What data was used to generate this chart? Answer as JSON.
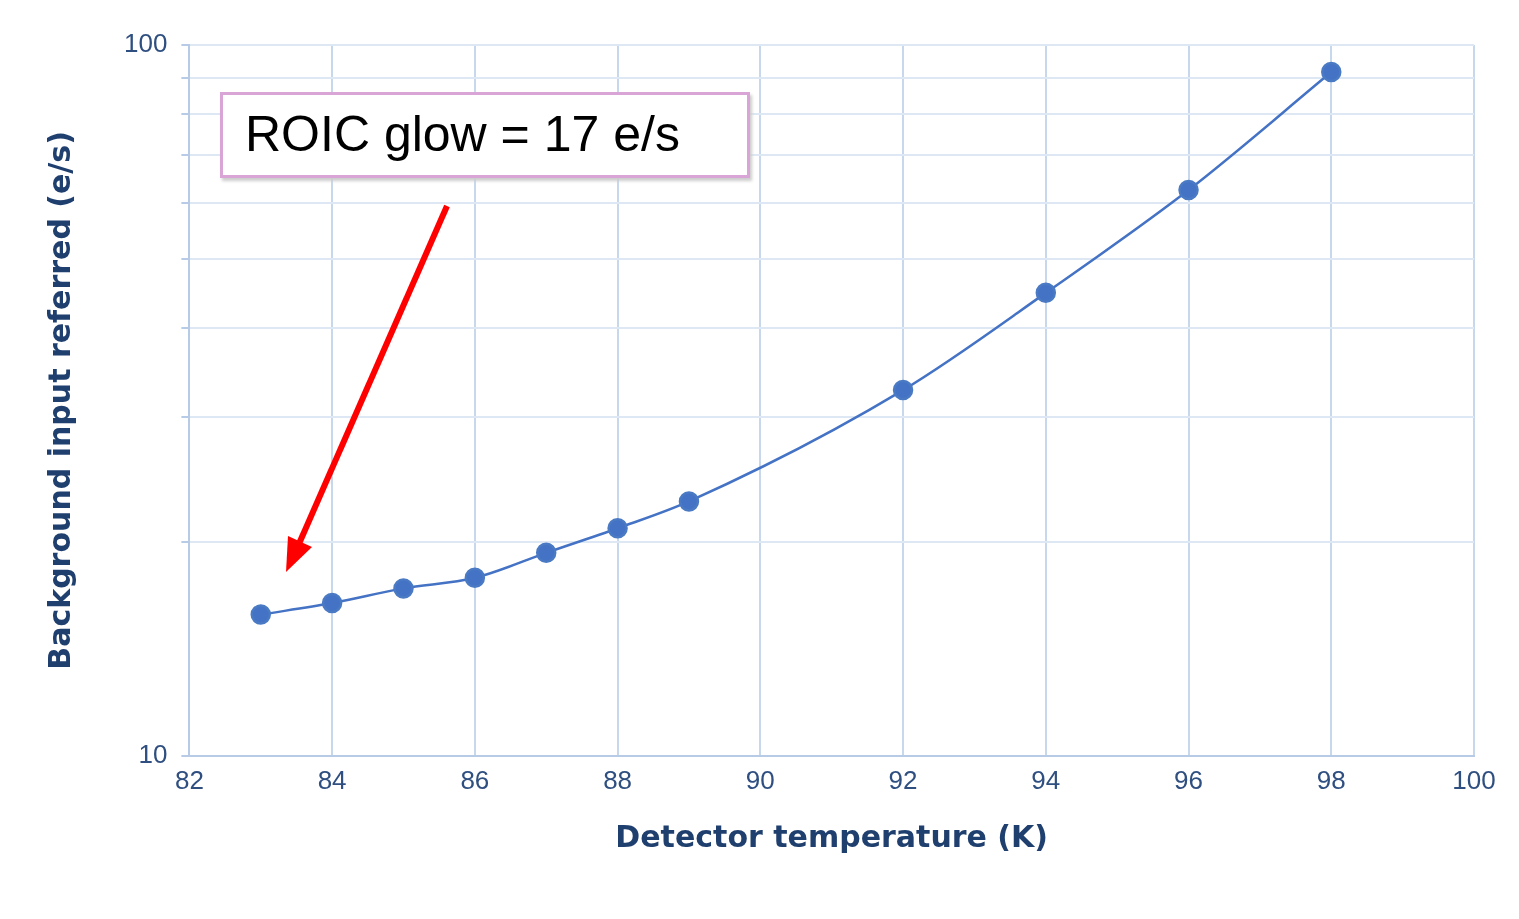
{
  "chart_data": {
    "type": "line",
    "xlabel": "Detector temperature (K)",
    "ylabel": "Background input referred (e/s)",
    "annotations": [
      "ROIC glow = 17 e/s"
    ],
    "x": [
      83,
      84,
      85,
      86,
      87,
      88,
      89,
      92,
      94,
      96,
      98
    ],
    "series": [
      {
        "color": "#4472c4",
        "values": [
          15.8,
          16.4,
          17.2,
          17.8,
          19.3,
          20.9,
          22.8,
          32.7,
          44.8,
          62.5,
          91.6
        ]
      }
    ],
    "xlim": [
      82,
      100
    ],
    "xticks": [
      82,
      84,
      86,
      88,
      90,
      92,
      94,
      96,
      98,
      100
    ],
    "ylim": [
      10,
      100
    ],
    "yticks": [
      10,
      {
        "value": 20,
        "label": null
      },
      {
        "value": 30,
        "label": null
      },
      {
        "value": 40,
        "label": null
      },
      {
        "value": 50,
        "label": null
      },
      {
        "value": 60,
        "label": null
      },
      {
        "value": 70,
        "label": null
      },
      {
        "value": 80,
        "label": null
      },
      {
        "value": 90,
        "label": null
      },
      100
    ],
    "log": "y",
    "grid": true,
    "legend": false,
    "marker": "circle",
    "line_style": "solid"
  }
}
